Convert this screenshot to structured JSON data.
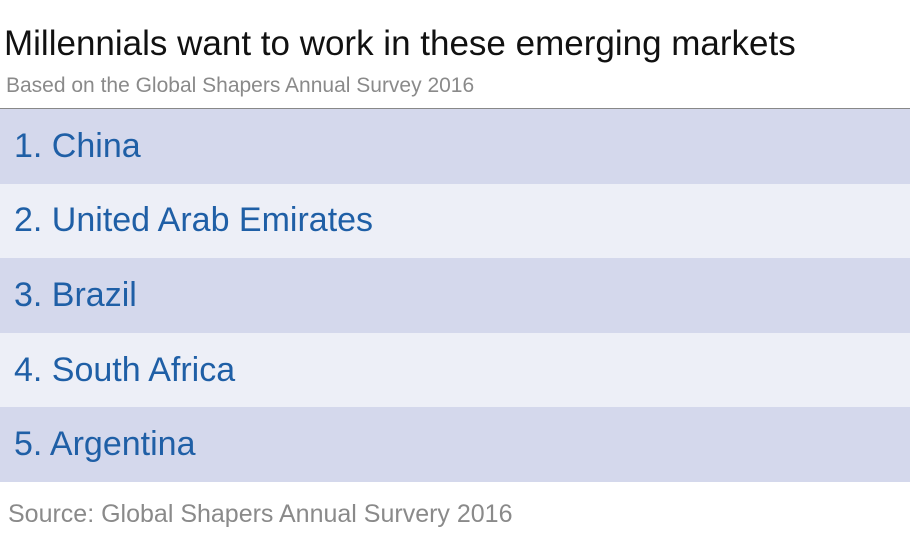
{
  "header": {
    "title": "Millennials want to work in these emerging markets",
    "subtitle": "Based on the Global Shapers Annual Survey 2016"
  },
  "list": {
    "items": [
      "1. China",
      "2. United Arab Emirates",
      "3. Brazil",
      "4. South Africa",
      "5. Argentina"
    ]
  },
  "footer": {
    "source": "Source: Global Shapers Annual Survery 2016"
  }
}
